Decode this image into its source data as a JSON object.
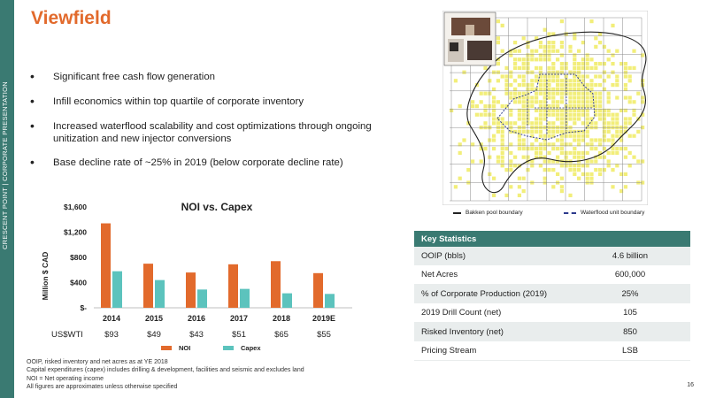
{
  "sidebar": {
    "text": "CRESCENT POINT   |   CORPORATE PRESENTATION"
  },
  "title": "Viewfield",
  "bullets": [
    "Significant free cash flow generation",
    "Infill economics within top quartile of corporate inventory",
    "Increased waterflood scalability and cost optimizations through ongoing unitization and new injector conversions",
    "Base decline rate of ~25% in 2019 (below corporate decline rate)"
  ],
  "chart_data": {
    "type": "bar",
    "title": "NOI vs. Capex",
    "ylabel": "Million $ CAD",
    "categories": [
      "2014",
      "2015",
      "2016",
      "2017",
      "2018",
      "2019E"
    ],
    "series": [
      {
        "name": "NOI",
        "values": [
          1340,
          700,
          560,
          690,
          740,
          550
        ],
        "color": "#e26a2c"
      },
      {
        "name": "Capex",
        "values": [
          580,
          440,
          290,
          300,
          230,
          220
        ],
        "color": "#5cc3bd"
      }
    ],
    "ylim": [
      0,
      1600
    ],
    "yticks": [
      {
        "value": 0,
        "label": "$-"
      },
      {
        "value": 400,
        "label": "$400"
      },
      {
        "value": 800,
        "label": "$800"
      },
      {
        "value": 1200,
        "label": "$1,200"
      },
      {
        "value": 1600,
        "label": "$1,600"
      }
    ],
    "price_row_label": "US$WTI",
    "prices": [
      "$93",
      "$49",
      "$43",
      "$51",
      "$65",
      "$55"
    ],
    "legend_position": "bottom"
  },
  "map": {
    "legend": {
      "pool": "Bakken pool boundary",
      "waterflood": "Waterflood unit boundary"
    },
    "colors": {
      "land": "#f2ee7a",
      "pool": "#222222",
      "waterflood": "#2d3a8c"
    }
  },
  "key_stats": {
    "header": "Key Statistics",
    "rows": [
      {
        "label": "OOIP (bbls)",
        "value": "4.6 billion"
      },
      {
        "label": "Net Acres",
        "value": "600,000"
      },
      {
        "label": "% of Corporate Production (2019)",
        "value": "25%"
      },
      {
        "label": "2019 Drill Count (net)",
        "value": "105"
      },
      {
        "label": "Risked Inventory (net)",
        "value": "850"
      },
      {
        "label": "Pricing Stream",
        "value": "LSB"
      }
    ]
  },
  "footnotes": [
    "OOIP, risked inventory and net acres as at YE 2018",
    "Capital expenditures (capex) includes drilling & development, facilities and seismic and excludes land",
    "NOI = Net operating income",
    "All figures are approximates unless otherwise specified"
  ],
  "page_number": "16"
}
